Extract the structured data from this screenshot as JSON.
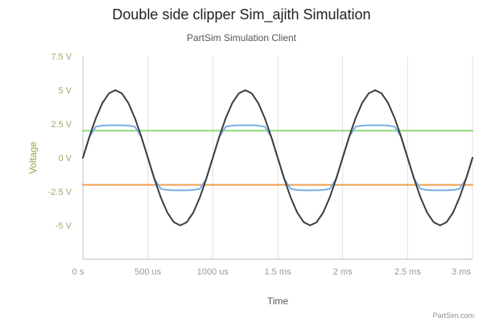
{
  "chart_data": {
    "type": "line",
    "title": "Double side clipper Sim_ajith Simulation",
    "subtitle": "PartSim Simulation Client",
    "xlabel": "Time",
    "ylabel": "Voltage",
    "xlim": [
      0,
      0.003
    ],
    "ylim": [
      -7.5,
      7.5
    ],
    "yticks": [
      {
        "value": 7.5,
        "label": "7.5 V"
      },
      {
        "value": 5,
        "label": "5 V"
      },
      {
        "value": 2.5,
        "label": "2.5 V"
      },
      {
        "value": 0,
        "label": "0 V"
      },
      {
        "value": -2.5,
        "label": "-2.5 V"
      },
      {
        "value": -5,
        "label": "-5 V"
      }
    ],
    "xticks": [
      {
        "value": 0,
        "label": "0 s"
      },
      {
        "value": 0.0005,
        "label": "500 us"
      },
      {
        "value": 0.001,
        "label": "1000 us"
      },
      {
        "value": 0.0015,
        "label": "1.5 ms"
      },
      {
        "value": 0.002,
        "label": "2 ms"
      },
      {
        "value": 0.0025,
        "label": "2.5 ms"
      },
      {
        "value": 0.003,
        "label": "3 ms"
      }
    ],
    "grid": {
      "x": true,
      "y": false
    },
    "series": [
      {
        "color": "#3c3c3c",
        "x": [
          0,
          5e-05,
          0.0001,
          0.00015,
          0.0002,
          0.00025,
          0.0003,
          0.00035,
          0.0004,
          0.00045,
          0.0005,
          0.00055,
          0.0006,
          0.00065,
          0.0007,
          0.00075,
          0.0008,
          0.00085,
          0.0009,
          0.00095,
          0.001,
          0.00105,
          0.0011,
          0.00115,
          0.0012,
          0.00125,
          0.0013,
          0.00135,
          0.0014,
          0.00145,
          0.0015,
          0.00155,
          0.0016,
          0.00165,
          0.0017,
          0.00175,
          0.0018,
          0.00185,
          0.0019,
          0.00195,
          0.002,
          0.00205,
          0.0021,
          0.00215,
          0.0022,
          0.00225,
          0.0023,
          0.00235,
          0.0024,
          0.00245,
          0.0025,
          0.00255,
          0.0026,
          0.00265,
          0.0027,
          0.00275,
          0.0028,
          0.00285,
          0.0029,
          0.00295,
          0.003
        ],
        "y": [
          0,
          1.55,
          2.94,
          4.05,
          4.76,
          5,
          4.76,
          4.05,
          2.94,
          1.55,
          0,
          -1.55,
          -2.94,
          -4.05,
          -4.76,
          -5,
          -4.76,
          -4.05,
          -2.94,
          -1.55,
          0,
          1.55,
          2.94,
          4.05,
          4.76,
          5,
          4.76,
          4.05,
          2.94,
          1.55,
          0,
          -1.55,
          -2.94,
          -4.05,
          -4.76,
          -5,
          -4.76,
          -4.05,
          -2.94,
          -1.55,
          0,
          1.55,
          2.94,
          4.05,
          4.76,
          5,
          4.76,
          4.05,
          2.94,
          1.55,
          0,
          -1.55,
          -2.94,
          -4.05,
          -4.76,
          -5,
          -4.76,
          -4.05,
          -2.94,
          -1.55,
          0
        ]
      },
      {
        "color": "#7aaee8",
        "x": [
          0,
          5e-05,
          0.0001,
          0.00015,
          0.0002,
          0.00025,
          0.0003,
          0.00035,
          0.0004,
          0.00045,
          0.0005,
          0.00055,
          0.0006,
          0.00065,
          0.0007,
          0.00075,
          0.0008,
          0.00085,
          0.0009,
          0.00095,
          0.001,
          0.00105,
          0.0011,
          0.00115,
          0.0012,
          0.00125,
          0.0013,
          0.00135,
          0.0014,
          0.00145,
          0.0015,
          0.00155,
          0.0016,
          0.00165,
          0.0017,
          0.00175,
          0.0018,
          0.00185,
          0.0019,
          0.00195,
          0.002,
          0.00205,
          0.0021,
          0.00215,
          0.0022,
          0.00225,
          0.0023,
          0.00235,
          0.0024,
          0.00245,
          0.0025,
          0.00255,
          0.0026,
          0.00265,
          0.0027,
          0.00275,
          0.0028,
          0.00285,
          0.0029,
          0.00295,
          0.003
        ],
        "y": [
          0,
          1.55,
          2.3,
          2.38,
          2.4,
          2.4,
          2.4,
          2.38,
          2.3,
          1.55,
          0,
          -1.55,
          -2.3,
          -2.38,
          -2.4,
          -2.4,
          -2.4,
          -2.38,
          -2.3,
          -1.55,
          0,
          1.55,
          2.3,
          2.38,
          2.4,
          2.4,
          2.4,
          2.38,
          2.3,
          1.55,
          0,
          -1.55,
          -2.3,
          -2.38,
          -2.4,
          -2.4,
          -2.4,
          -2.38,
          -2.3,
          -1.55,
          0,
          1.55,
          2.3,
          2.38,
          2.4,
          2.4,
          2.4,
          2.38,
          2.3,
          1.55,
          0,
          -1.55,
          -2.3,
          -2.38,
          -2.4,
          -2.4,
          -2.4,
          -2.38,
          -2.3,
          -1.55,
          0
        ]
      },
      {
        "color": "#8fd87a",
        "x": [
          0,
          0.003
        ],
        "y": [
          2,
          2
        ]
      },
      {
        "color": "#f0a050",
        "x": [
          0,
          0.003
        ],
        "y": [
          -2,
          -2
        ]
      }
    ]
  },
  "style": {
    "axis_label_color": "#8aaa40",
    "tick_label_color": "#9aaa6a",
    "xtick_label_color": "#999999",
    "grid_color": "#e0e0e0",
    "axis_color": "#bbbbbb"
  },
  "credit": "PartSim.com"
}
